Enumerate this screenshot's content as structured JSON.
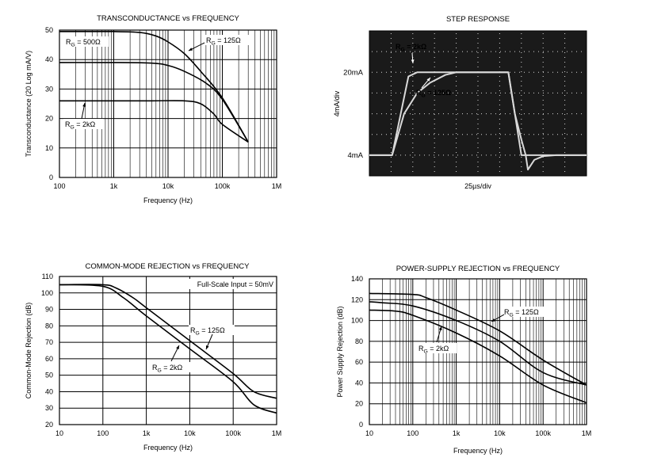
{
  "chart_data": [
    {
      "id": "tc",
      "type": "line",
      "title": "TRANSCONDUCTANCE vs FREQUENCY",
      "xlabel": "Frequency (Hz)",
      "ylabel": "Transconductance (20 Log mA/V)",
      "xscale": "log",
      "xlim": [
        100,
        1000000
      ],
      "ylim": [
        0,
        50
      ],
      "xticks": [
        {
          "v": 100,
          "label": "100"
        },
        {
          "v": 1000,
          "label": "1k"
        },
        {
          "v": 10000,
          "label": "10k"
        },
        {
          "v": 100000,
          "label": "100k"
        },
        {
          "v": 1000000,
          "label": "1M"
        }
      ],
      "yticks": [
        0,
        10,
        20,
        30,
        40,
        50
      ],
      "grid": "minor-log",
      "series": [
        {
          "name": "RG = 125Ω",
          "x": [
            100,
            1000,
            3000,
            6000,
            10000,
            20000,
            40000,
            100000,
            300000
          ],
          "y": [
            49.5,
            49.5,
            49.2,
            48,
            46,
            42,
            36,
            27,
            12
          ]
        },
        {
          "name": "RG = 500Ω",
          "x": [
            100,
            1000,
            5000,
            10000,
            20000,
            50000,
            100000,
            300000
          ],
          "y": [
            39,
            39,
            38.8,
            38,
            36,
            32,
            26.5,
            12
          ]
        },
        {
          "name": "RG = 2kΩ",
          "x": [
            100,
            1000,
            5000,
            20000,
            40000,
            70000,
            100000,
            300000
          ],
          "y": [
            26,
            26,
            26,
            26,
            25,
            21.5,
            18,
            12
          ]
        }
      ],
      "annotations": [
        {
          "text": "RG = 500Ω"
        },
        {
          "text": "RG = 125Ω"
        },
        {
          "text": "RG = 2kΩ"
        }
      ]
    },
    {
      "id": "step",
      "type": "line",
      "title": "STEP RESPONSE",
      "xlabel": "25µs/div",
      "ylabel": "4mA/div",
      "ylim": [
        0,
        28
      ],
      "xlim": [
        0,
        10
      ],
      "y_labels": [
        {
          "v": 4,
          "label": "4mA"
        },
        {
          "v": 20,
          "label": "20mA"
        }
      ],
      "grid": "dotted-scope",
      "series": [
        {
          "name": "RG = 2kΩ",
          "x": [
            0,
            1.05,
            1.8,
            2.2,
            5.3,
            6.4,
            7,
            7.7,
            10
          ],
          "y": [
            4,
            4,
            19.2,
            20,
            20,
            20,
            4,
            4,
            4
          ]
        },
        {
          "name": "RG = 125Ω",
          "x": [
            0,
            1.05,
            1.6,
            2.2,
            2.8,
            3.5,
            4,
            5.3,
            6.4,
            6.7,
            7,
            7.2,
            7.3,
            7.6,
            8,
            8.6,
            9.6,
            10
          ],
          "y": [
            4,
            4,
            12,
            16,
            18,
            19.5,
            20,
            20,
            20,
            12,
            7,
            4,
            1.2,
            3.1,
            3.8,
            4,
            4,
            4
          ]
        }
      ],
      "annotations": [
        {
          "text": "RG = 2kΩ"
        },
        {
          "text": "RG = 125Ω"
        }
      ]
    },
    {
      "id": "cmr",
      "type": "line",
      "title": "COMMON-MODE REJECTION vs FREQUENCY",
      "xlabel": "Frequency (Hz)",
      "ylabel": "Common-Mode Rejection (dB)",
      "xscale": "log",
      "xlim": [
        10,
        1000000
      ],
      "ylim": [
        20,
        110
      ],
      "xticks": [
        {
          "v": 10,
          "label": "10"
        },
        {
          "v": 100,
          "label": "100"
        },
        {
          "v": 1000,
          "label": "1k"
        },
        {
          "v": 10000,
          "label": "10k"
        },
        {
          "v": 100000,
          "label": "100k"
        },
        {
          "v": 1000000,
          "label": "1M"
        }
      ],
      "yticks": [
        20,
        30,
        40,
        50,
        60,
        70,
        80,
        90,
        100,
        110
      ],
      "grid": "major",
      "note": "Full-Scale Input = 50mV",
      "series": [
        {
          "name": "RG = 125Ω",
          "x": [
            10,
            100,
            200,
            500,
            1000,
            10000,
            100000,
            300000,
            1000000
          ],
          "y": [
            105,
            105,
            103,
            97,
            91,
            71,
            51,
            40,
            36
          ]
        },
        {
          "name": "RG = 2kΩ",
          "x": [
            10,
            100,
            300,
            1000,
            10000,
            100000,
            300000,
            1000000
          ],
          "y": [
            105,
            104,
            97,
            86,
            66,
            46,
            32,
            27
          ]
        }
      ],
      "annotations": [
        {
          "text": "RG = 125Ω"
        },
        {
          "text": "RG = 2kΩ"
        }
      ]
    },
    {
      "id": "psr",
      "type": "line",
      "title": "POWER-SUPPLY REJECTION vs FREQUENCY",
      "xlabel": "Frequency (Hz)",
      "ylabel": "Power Supply Rejection (dB)",
      "xscale": "log",
      "xlim": [
        10,
        1000000
      ],
      "ylim": [
        0,
        140
      ],
      "xticks": [
        {
          "v": 10,
          "label": "10"
        },
        {
          "v": 100,
          "label": "100"
        },
        {
          "v": 1000,
          "label": "1k"
        },
        {
          "v": 10000,
          "label": "10k"
        },
        {
          "v": 100000,
          "label": "100k"
        },
        {
          "v": 1000000,
          "label": "1M"
        }
      ],
      "yticks": [
        0,
        20,
        40,
        60,
        80,
        100,
        120,
        140
      ],
      "grid": "minor-log",
      "series": [
        {
          "name": "RG = 125Ω",
          "x": [
            10,
            100,
            200,
            1000,
            10000,
            100000,
            1000000
          ],
          "y": [
            126,
            125,
            122,
            110,
            90,
            62,
            38
          ]
        },
        {
          "name": "RG = 2kΩ",
          "x": [
            10,
            20,
            100,
            1000,
            10000,
            100000,
            1000000
          ],
          "y": [
            118,
            117,
            114,
            100,
            80,
            50,
            38
          ]
        },
        {
          "name": "",
          "x": [
            10,
            40,
            100,
            1000,
            10000,
            100000,
            1000000
          ],
          "y": [
            110,
            109,
            105,
            88,
            66,
            38,
            21
          ]
        }
      ],
      "annotations": [
        {
          "text": "RG = 125Ω"
        },
        {
          "text": "RG = 2kΩ"
        }
      ]
    }
  ]
}
